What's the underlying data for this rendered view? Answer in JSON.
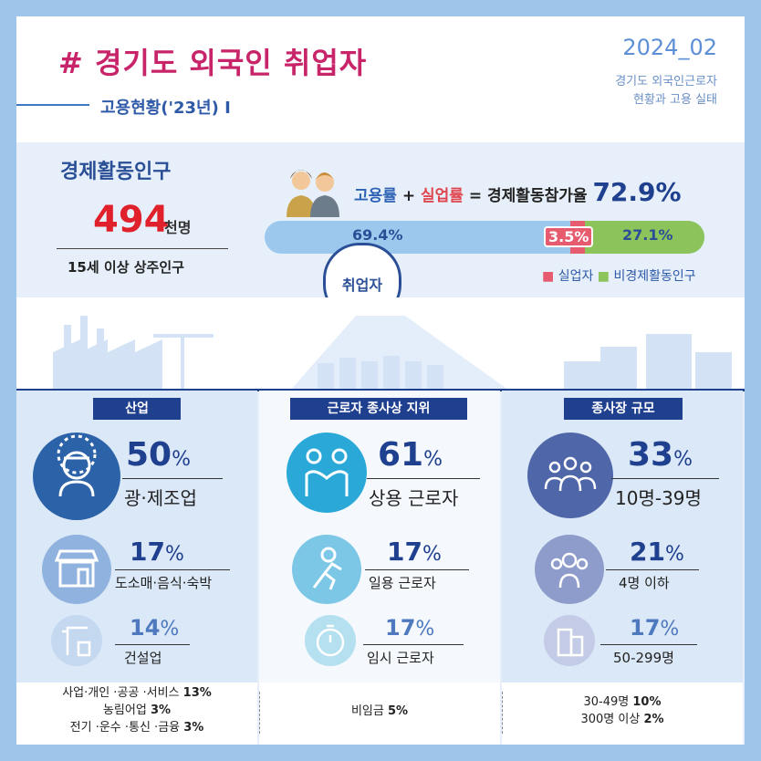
{
  "header": {
    "title": "# 경기도 외국인 취업자",
    "subtitle": "고용현황('23년) I",
    "year": "2024_02",
    "desc_line1": "경기도 외국인근로자",
    "desc_line2": "현황과 고용 실태"
  },
  "eap": {
    "title": "경제활동인구",
    "value": "494",
    "unit": "천명",
    "desc": "15세 이상 상주인구"
  },
  "formula": {
    "employment": "고용률",
    "plus": "+",
    "unemployment": "실업률",
    "equals": "=",
    "participation": "경제활동참가율",
    "participation_value": "72.9%"
  },
  "bar": {
    "employed_pct": 69.4,
    "unemployed_pct": 3.5,
    "inactive_pct": 27.1,
    "employed_label": "69.4%",
    "unemployed_label": "3.5%",
    "inactive_label": "27.1%",
    "circle_label": "취업자"
  },
  "legend": {
    "unemployed": "실업자",
    "inactive": "비경제활동인구"
  },
  "colors": {
    "navy": "#1f3f8f",
    "title_pink": "#c8246a",
    "employed_blue": "#9cc8ee",
    "unemployed_red": "#e65b6d",
    "inactive_green": "#8cc35a"
  },
  "industry": {
    "header": "산업",
    "items": [
      {
        "value": "50",
        "label": "광·제조업",
        "icon": "factory-worker-icon"
      },
      {
        "value": "17",
        "label": "도소매·음식·숙박",
        "icon": "storefront-icon"
      },
      {
        "value": "14",
        "label": "건설업",
        "icon": "crane-icon"
      }
    ],
    "others": [
      {
        "label": "사업·개인 ·공공 ·서비스",
        "value": "13%"
      },
      {
        "label": "농림어업",
        "value": "3%"
      },
      {
        "label": "전기 ·운수 ·통신 ·금융",
        "value": "3%"
      }
    ]
  },
  "status": {
    "header": "근로자 종사상 지위",
    "items": [
      {
        "value": "61",
        "label": "상용 근로자",
        "icon": "handshake-icon"
      },
      {
        "value": "17",
        "label": "일용 근로자",
        "icon": "runner-icon"
      },
      {
        "value": "17",
        "label": "임시 근로자",
        "icon": "stopwatch-icon"
      }
    ],
    "others": [
      {
        "label": "비임금",
        "value": "5%"
      }
    ]
  },
  "size": {
    "header": "종사장 규모",
    "items": [
      {
        "value": "33",
        "label": "10명-39명",
        "icon": "group-large-icon"
      },
      {
        "value": "21",
        "label": "4명 이하",
        "icon": "group-small-icon"
      },
      {
        "value": "17",
        "label": "50-299명",
        "icon": "building-icon"
      }
    ],
    "others": [
      {
        "label": "30-49명",
        "value": "10%"
      },
      {
        "label": "300명 이상",
        "value": "2%"
      }
    ]
  },
  "pct_sign": "%"
}
